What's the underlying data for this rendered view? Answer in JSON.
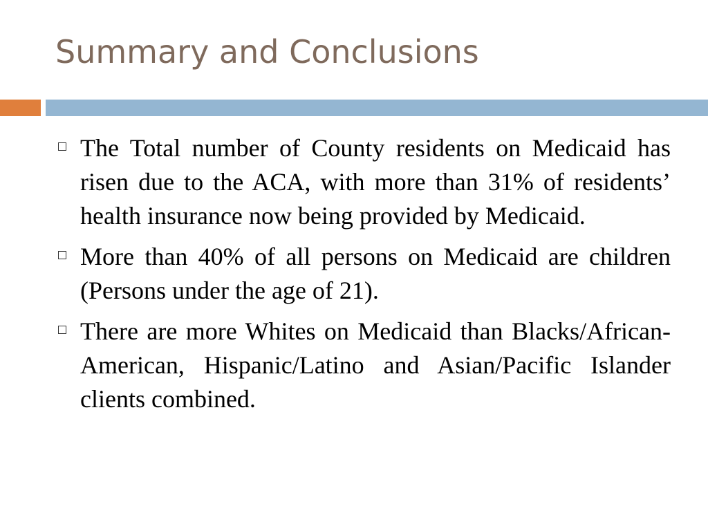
{
  "slide": {
    "title": "Summary and Conclusions",
    "colors": {
      "title": "#7f6a5c",
      "accent_bar": "#e07f3c",
      "main_bar": "#94b6d2"
    },
    "bullet_icon": "square-outline-icon",
    "bullets": [
      {
        "text": "The Total number of County residents on Medicaid has risen due to the ACA, with more than 31% of residents’ health insurance now being provided by Medicaid."
      },
      {
        "text": "More than 40% of all persons on Medicaid are children (Persons under the age of 21)."
      },
      {
        "text": "There are more Whites on Medicaid than Blacks/African-American, Hispanic/Latino and Asian/Pacific Islander clients combined."
      }
    ]
  }
}
